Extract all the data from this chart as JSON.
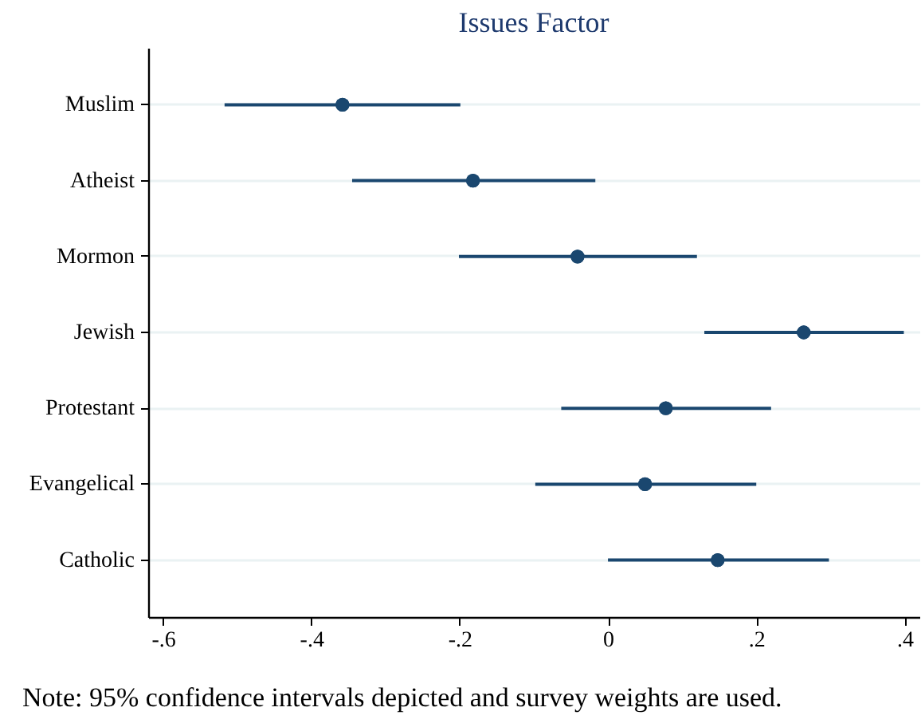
{
  "chart_data": {
    "type": "scatter",
    "title": "Issues Factor",
    "orientation": "horizontal",
    "categories": [
      "Muslim",
      "Atheist",
      "Mormon",
      "Jewish",
      "Protestant",
      "Evangelical",
      "Catholic"
    ],
    "values": [
      -0.358,
      -0.182,
      -0.041,
      0.264,
      0.078,
      0.05,
      0.148
    ],
    "errors": [
      [
        -0.517,
        -0.199
      ],
      [
        -0.345,
        -0.017
      ],
      [
        -0.201,
        0.12
      ],
      [
        0.13,
        0.399
      ],
      [
        -0.063,
        0.22
      ],
      [
        -0.098,
        0.2
      ],
      [
        0.0,
        0.298
      ]
    ],
    "color": "#1a476f",
    "marker": "circle",
    "grid": "y",
    "xlim": [
      -0.62,
      0.42
    ],
    "xticks": [
      {
        "value": -0.6,
        "label": "-.6"
      },
      {
        "value": -0.4,
        "label": "-.4"
      },
      {
        "value": -0.2,
        "label": "-.2"
      },
      0,
      {
        "value": 0.2,
        "label": ".2"
      },
      {
        "value": 0.4,
        "label": ".4"
      }
    ],
    "annotations": [
      "Note: 95% confidence intervals depicted and survey weights are used."
    ]
  }
}
